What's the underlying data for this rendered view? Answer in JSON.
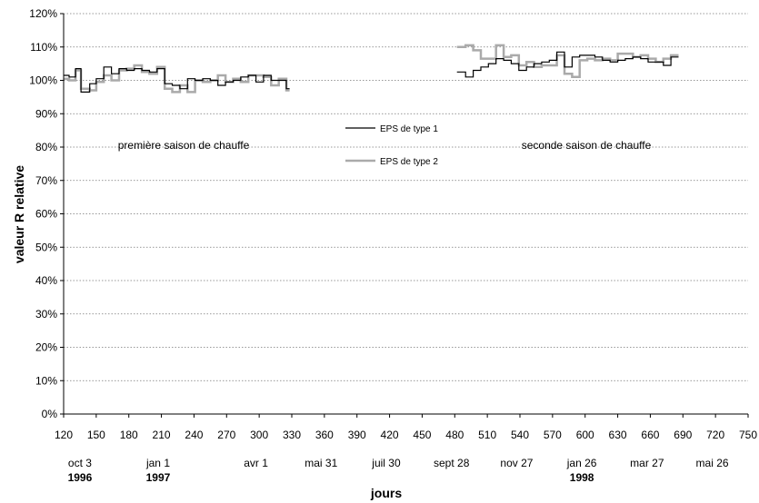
{
  "chart_data": {
    "type": "line",
    "title": "",
    "xlabel": "jours",
    "ylabel": "valeur R relative",
    "xlim": [
      120,
      750
    ],
    "ylim": [
      0,
      120
    ],
    "x_ticks": [
      120,
      150,
      180,
      210,
      240,
      270,
      300,
      330,
      360,
      390,
      420,
      450,
      480,
      510,
      540,
      570,
      600,
      630,
      660,
      690,
      720,
      750
    ],
    "y_ticks": [
      "0%",
      "10%",
      "20%",
      "30%",
      "40%",
      "50%",
      "60%",
      "70%",
      "80%",
      "90%",
      "100%",
      "110%",
      "120%"
    ],
    "y_tick_values": [
      0,
      10,
      20,
      30,
      40,
      50,
      60,
      70,
      80,
      90,
      100,
      110,
      120
    ],
    "grid": "horizontal dotted",
    "date_labels": [
      {
        "x": 135,
        "label": "oct 3"
      },
      {
        "x": 207,
        "label": "jan 1"
      },
      {
        "x": 297,
        "label": "avr 1"
      },
      {
        "x": 357,
        "label": "mai 31"
      },
      {
        "x": 417,
        "label": "juil 30"
      },
      {
        "x": 477,
        "label": "sept 28"
      },
      {
        "x": 537,
        "label": "nov 27"
      },
      {
        "x": 597,
        "label": "jan 26"
      },
      {
        "x": 657,
        "label": "mar 27"
      },
      {
        "x": 717,
        "label": "mai 26"
      }
    ],
    "year_labels": [
      {
        "x": 135,
        "label": "1996"
      },
      {
        "x": 207,
        "label": "1997"
      },
      {
        "x": 597,
        "label": "1998"
      }
    ],
    "annotations": [
      {
        "x": 220,
        "y": 80,
        "text": "première saison de chauffe"
      },
      {
        "x": 620,
        "y": 80,
        "text": "seconde saison de chauffe"
      }
    ],
    "legend": [
      "EPS de type 1",
      "EPS de type 2"
    ],
    "series": [
      {
        "name": "EPS de type 1",
        "color": "#000000",
        "segments": [
          [
            [
              120,
              101.5
            ],
            [
              125,
              101.5
            ],
            [
              125,
              101
            ],
            [
              131,
              101
            ],
            [
              131,
              103.5
            ],
            [
              136,
              103.5
            ],
            [
              136,
              96.5
            ],
            [
              144,
              96.5
            ],
            [
              144,
              99
            ],
            [
              150,
              99
            ],
            [
              150,
              100.5
            ],
            [
              157,
              100.5
            ],
            [
              157,
              104
            ],
            [
              164,
              104
            ],
            [
              164,
              102
            ],
            [
              171,
              102
            ],
            [
              171,
              103.5
            ],
            [
              178,
              103.5
            ],
            [
              178,
              103
            ],
            [
              185,
              103
            ],
            [
              185,
              103.5
            ],
            [
              192,
              103.5
            ],
            [
              192,
              103
            ],
            [
              199,
              103
            ],
            [
              199,
              102.5
            ],
            [
              206,
              102.5
            ],
            [
              206,
              103.5
            ],
            [
              213,
              103.5
            ],
            [
              213,
              99
            ],
            [
              220,
              99
            ],
            [
              220,
              98.5
            ],
            [
              227,
              98.5
            ],
            [
              227,
              97.5
            ],
            [
              234,
              97.5
            ],
            [
              234,
              100.5
            ],
            [
              241,
              100.5
            ],
            [
              241,
              100
            ],
            [
              248,
              100
            ],
            [
              248,
              100.5
            ],
            [
              255,
              100.5
            ],
            [
              255,
              100
            ],
            [
              262,
              100
            ],
            [
              262,
              98.5
            ],
            [
              269,
              98.5
            ],
            [
              269,
              99.5
            ],
            [
              276,
              99.5
            ],
            [
              276,
              100
            ],
            [
              283,
              100
            ],
            [
              283,
              101
            ],
            [
              290,
              101
            ],
            [
              290,
              101.5
            ],
            [
              297,
              101.5
            ],
            [
              297,
              99.5
            ],
            [
              304,
              99.5
            ],
            [
              304,
              101.5
            ],
            [
              311,
              101.5
            ],
            [
              311,
              100
            ],
            [
              318,
              100
            ],
            [
              318,
              100
            ],
            [
              325,
              100
            ],
            [
              325,
              97.5
            ],
            [
              328,
              97.5
            ]
          ],
          [
            [
              482,
              102.5
            ],
            [
              490,
              102.5
            ],
            [
              490,
              101
            ],
            [
              497,
              101
            ],
            [
              497,
              103
            ],
            [
              504,
              103
            ],
            [
              504,
              104
            ],
            [
              511,
              104
            ],
            [
              511,
              105
            ],
            [
              518,
              105
            ],
            [
              518,
              106.5
            ],
            [
              525,
              106.5
            ],
            [
              525,
              106
            ],
            [
              532,
              106
            ],
            [
              532,
              105
            ],
            [
              539,
              105
            ],
            [
              539,
              103
            ],
            [
              546,
              103
            ],
            [
              546,
              104
            ],
            [
              553,
              104
            ],
            [
              553,
              105
            ],
            [
              560,
              105
            ],
            [
              560,
              105.5
            ],
            [
              567,
              105.5
            ],
            [
              567,
              106
            ],
            [
              574,
              106
            ],
            [
              574,
              108.5
            ],
            [
              581,
              108.5
            ],
            [
              581,
              104
            ],
            [
              588,
              104
            ],
            [
              588,
              107
            ],
            [
              595,
              107
            ],
            [
              595,
              107.5
            ],
            [
              602,
              107.5
            ],
            [
              602,
              107.5
            ],
            [
              609,
              107.5
            ],
            [
              609,
              107
            ],
            [
              616,
              107
            ],
            [
              616,
              106
            ],
            [
              623,
              106
            ],
            [
              623,
              105.5
            ],
            [
              630,
              105.5
            ],
            [
              630,
              106
            ],
            [
              637,
              106
            ],
            [
              637,
              106.5
            ],
            [
              644,
              106.5
            ],
            [
              644,
              107
            ],
            [
              651,
              107
            ],
            [
              651,
              106.5
            ],
            [
              658,
              106.5
            ],
            [
              658,
              105.5
            ],
            [
              665,
              105.5
            ],
            [
              665,
              105.5
            ],
            [
              672,
              105.5
            ],
            [
              672,
              104.5
            ],
            [
              679,
              104.5
            ],
            [
              679,
              107
            ],
            [
              686,
              107
            ]
          ]
        ]
      },
      {
        "name": "EPS de type 2",
        "color": "#aaaaaa",
        "segments": [
          [
            [
              120,
              100.5
            ],
            [
              125,
              100.5
            ],
            [
              125,
              100
            ],
            [
              131,
              100
            ],
            [
              131,
              103
            ],
            [
              136,
              103
            ],
            [
              136,
              97.5
            ],
            [
              144,
              97.5
            ],
            [
              144,
              97
            ],
            [
              150,
              97
            ],
            [
              150,
              99.5
            ],
            [
              157,
              99.5
            ],
            [
              157,
              101.5
            ],
            [
              164,
              101.5
            ],
            [
              164,
              100
            ],
            [
              171,
              100
            ],
            [
              171,
              103
            ],
            [
              178,
              103
            ],
            [
              178,
              103.5
            ],
            [
              185,
              103.5
            ],
            [
              185,
              104.5
            ],
            [
              192,
              104.5
            ],
            [
              192,
              102.5
            ],
            [
              199,
              102.5
            ],
            [
              199,
              102
            ],
            [
              206,
              102
            ],
            [
              206,
              104
            ],
            [
              213,
              104
            ],
            [
              213,
              97.5
            ],
            [
              220,
              97.5
            ],
            [
              220,
              96.5
            ],
            [
              227,
              96.5
            ],
            [
              227,
              98.5
            ],
            [
              234,
              98.5
            ],
            [
              234,
              96.5
            ],
            [
              241,
              96.5
            ],
            [
              241,
              100
            ],
            [
              248,
              100
            ],
            [
              248,
              99.5
            ],
            [
              255,
              99.5
            ],
            [
              255,
              100
            ],
            [
              262,
              100
            ],
            [
              262,
              101.5
            ],
            [
              269,
              101.5
            ],
            [
              269,
              99.5
            ],
            [
              276,
              99.5
            ],
            [
              276,
              100.5
            ],
            [
              283,
              100.5
            ],
            [
              283,
              99.5
            ],
            [
              290,
              99.5
            ],
            [
              290,
              101.5
            ],
            [
              297,
              101.5
            ],
            [
              297,
              101.5
            ],
            [
              304,
              101.5
            ],
            [
              304,
              101
            ],
            [
              311,
              101
            ],
            [
              311,
              98.5
            ],
            [
              318,
              98.5
            ],
            [
              318,
              100.5
            ],
            [
              325,
              100.5
            ],
            [
              325,
              97
            ],
            [
              328,
              97
            ]
          ],
          [
            [
              482,
              110
            ],
            [
              490,
              110
            ],
            [
              490,
              110.5
            ],
            [
              497,
              110.5
            ],
            [
              497,
              109
            ],
            [
              504,
              109
            ],
            [
              504,
              106.5
            ],
            [
              511,
              106.5
            ],
            [
              511,
              106.5
            ],
            [
              518,
              106.5
            ],
            [
              518,
              110.5
            ],
            [
              525,
              110.5
            ],
            [
              525,
              107
            ],
            [
              532,
              107
            ],
            [
              532,
              107.5
            ],
            [
              539,
              107.5
            ],
            [
              539,
              104.5
            ],
            [
              546,
              104.5
            ],
            [
              546,
              105.5
            ],
            [
              553,
              105.5
            ],
            [
              553,
              104
            ],
            [
              560,
              104
            ],
            [
              560,
              104.5
            ],
            [
              567,
              104.5
            ],
            [
              567,
              104.5
            ],
            [
              574,
              104.5
            ],
            [
              574,
              107.5
            ],
            [
              581,
              107.5
            ],
            [
              581,
              102
            ],
            [
              588,
              102
            ],
            [
              588,
              101
            ],
            [
              595,
              101
            ],
            [
              595,
              106
            ],
            [
              602,
              106
            ],
            [
              602,
              106.5
            ],
            [
              609,
              106.5
            ],
            [
              609,
              106
            ],
            [
              616,
              106
            ],
            [
              616,
              106.5
            ],
            [
              623,
              106.5
            ],
            [
              623,
              106
            ],
            [
              630,
              106
            ],
            [
              630,
              108
            ],
            [
              637,
              108
            ],
            [
              637,
              108
            ],
            [
              644,
              108
            ],
            [
              644,
              107
            ],
            [
              651,
              107
            ],
            [
              651,
              107.5
            ],
            [
              658,
              107.5
            ],
            [
              658,
              106.5
            ],
            [
              665,
              106.5
            ],
            [
              665,
              105.5
            ],
            [
              672,
              105.5
            ],
            [
              672,
              106.5
            ],
            [
              679,
              106.5
            ],
            [
              679,
              107.5
            ],
            [
              686,
              107.5
            ]
          ]
        ]
      }
    ]
  }
}
